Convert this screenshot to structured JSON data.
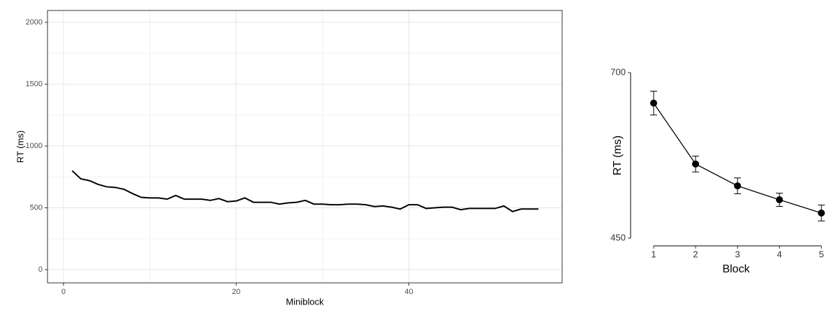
{
  "chart_data": [
    {
      "type": "line",
      "xlabel": "Miniblock",
      "ylabel": "RT (ms)",
      "x": [
        1,
        2,
        3,
        4,
        5,
        6,
        7,
        8,
        9,
        10,
        11,
        12,
        13,
        14,
        15,
        16,
        17,
        18,
        19,
        20,
        21,
        22,
        23,
        24,
        25,
        26,
        27,
        28,
        29,
        30,
        31,
        32,
        33,
        34,
        35,
        36,
        37,
        38,
        39,
        40,
        41,
        42,
        43,
        44,
        45,
        46,
        47,
        48,
        49,
        50,
        51,
        52,
        53,
        54,
        55
      ],
      "series": [
        {
          "color": "#000000",
          "values": [
            800,
            735,
            720,
            690,
            670,
            665,
            650,
            615,
            585,
            580,
            580,
            570,
            600,
            570,
            570,
            570,
            560,
            575,
            550,
            555,
            580,
            545,
            545,
            545,
            530,
            540,
            545,
            560,
            530,
            530,
            525,
            525,
            530,
            530,
            525,
            510,
            515,
            505,
            490,
            525,
            525,
            495,
            500,
            505,
            505,
            485,
            495,
            495,
            495,
            495,
            515,
            470,
            490,
            490,
            490
          ]
        }
      ],
      "xlim": [
        -1.85,
        57.75
      ],
      "ylim": [
        -107,
        2096
      ],
      "xticks": [
        0,
        20,
        40
      ],
      "yticks": [
        0,
        500,
        1000,
        1500,
        2000
      ],
      "grid": true,
      "frame": true
    },
    {
      "type": "line",
      "xlabel": "Block",
      "ylabel": "RT (ms)",
      "x": [
        1,
        2,
        3,
        4,
        5
      ],
      "series": [
        {
          "color": "#000000",
          "values": [
            654,
            562,
            529,
            508,
            488
          ],
          "errors": [
            18,
            12,
            12,
            10,
            12
          ]
        }
      ],
      "xlim": [
        0.9,
        5.03
      ],
      "ylim": [
        450,
        700
      ],
      "xticks": [
        1,
        2,
        3,
        4,
        5
      ],
      "yticks": [
        450,
        700
      ],
      "grid": false,
      "frame": false
    }
  ]
}
